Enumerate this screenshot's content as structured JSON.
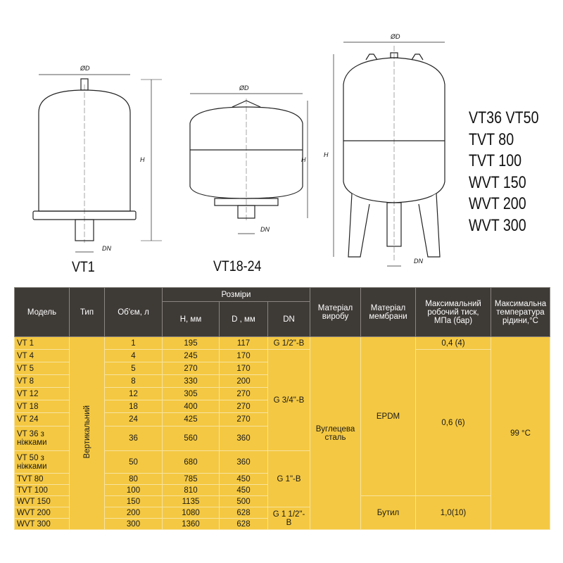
{
  "drawings": {
    "vt1": {
      "label": "VT1",
      "dim_d": "ØD",
      "dim_h": "H",
      "dim_dn": "DN"
    },
    "vt18": {
      "label": "VT18-24",
      "dim_d": "ØD",
      "dim_h": "H",
      "dim_dn": "DN"
    },
    "vt36": {
      "dim_d": "ØD",
      "dim_h": "H",
      "dim_dn": "DN",
      "models": [
        "VT36 VT50",
        "TVT 80",
        "TVT 100",
        "WVT 150",
        "WVT 200",
        "WVT 300"
      ]
    }
  },
  "table": {
    "headers": {
      "model": "Модель",
      "type": "Тип",
      "volume": "Об'єм, л",
      "sizes": "Розміри",
      "h": "H, мм",
      "d": "D  , мм",
      "dn": "DN",
      "material": "Матеріал виробу",
      "membrane": "Матеріал мембрани",
      "pressure": "Максимальний робочий тиск, МПа (бар)",
      "temp": "Максимальна температура рідини,°C"
    },
    "type": "Вертикальний",
    "material": "Вуглецева сталь",
    "temp": "99 °C",
    "membranes": [
      "EPDM",
      "Бутил"
    ],
    "pressures": [
      "0,4 (4)",
      "0,6 (6)",
      "1,0(10)"
    ],
    "dns": [
      "G 1/2\"-B",
      "G 3/4\"-B",
      "G 1\"-B",
      "G 1 1/2\"-B"
    ],
    "rows": [
      {
        "model": "VT 1",
        "volume": "1",
        "h": "195",
        "d": "117"
      },
      {
        "model": "VT 4",
        "volume": "4",
        "h": "245",
        "d": "170"
      },
      {
        "model": "VT 5",
        "volume": "5",
        "h": "270",
        "d": "170"
      },
      {
        "model": "VT 8",
        "volume": "8",
        "h": "330",
        "d": "200"
      },
      {
        "model": "VT 12",
        "volume": "12",
        "h": "305",
        "d": "270"
      },
      {
        "model": "VT 18",
        "volume": "18",
        "h": "400",
        "d": "270"
      },
      {
        "model": "VT 24",
        "volume": "24",
        "h": "425",
        "d": "270"
      },
      {
        "model": "VT 36 з ніжками",
        "volume": "36",
        "h": "560",
        "d": "360"
      },
      {
        "model": "VT 50 з ніжками",
        "volume": "50",
        "h": "680",
        "d": "360"
      },
      {
        "model": "TVT 80",
        "volume": "80",
        "h": "785",
        "d": "450"
      },
      {
        "model": "TVT 100",
        "volume": "100",
        "h": "810",
        "d": "450"
      },
      {
        "model": "WVT 150",
        "volume": "150",
        "h": "1135",
        "d": "500"
      },
      {
        "model": "WVT 200",
        "volume": "200",
        "h": "1080",
        "d": "628"
      },
      {
        "model": "WVT 300",
        "volume": "300",
        "h": "1360",
        "d": "628"
      }
    ]
  }
}
